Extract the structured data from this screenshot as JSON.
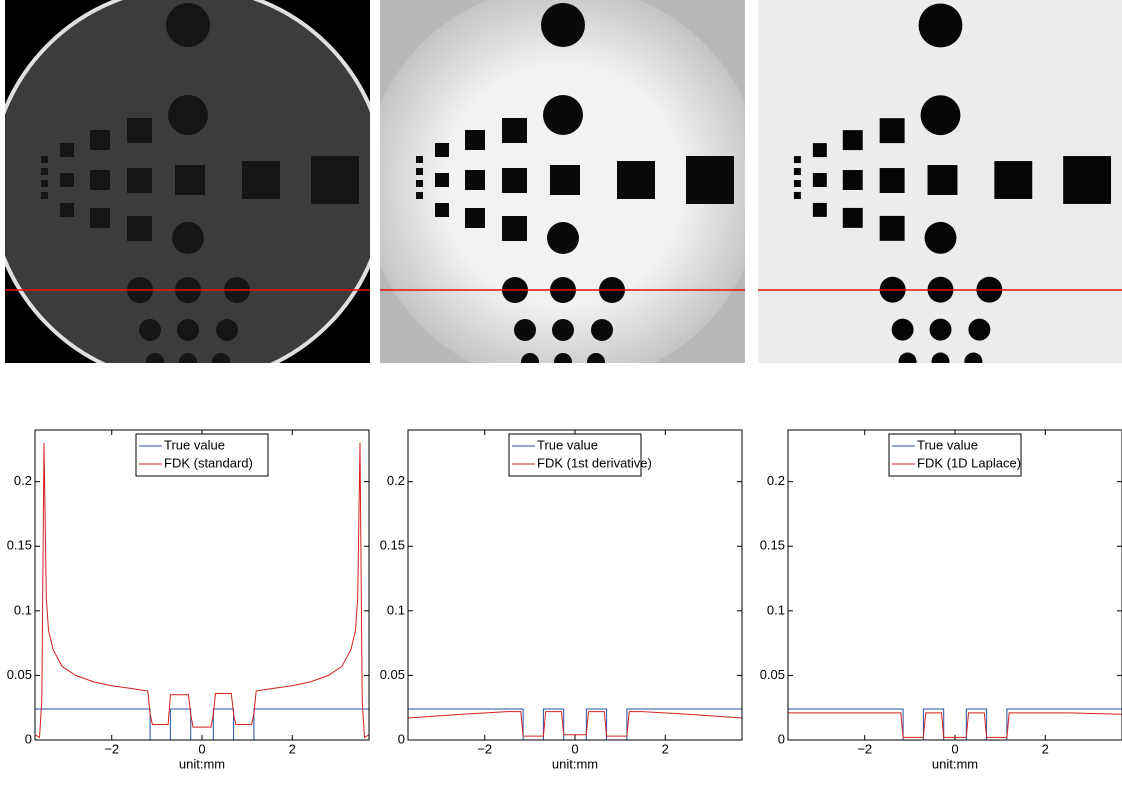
{
  "chart_data": [
    {
      "type": "line",
      "x_label": "unit:mm",
      "xlim": [
        -3.7,
        3.7
      ],
      "ylim": [
        0,
        0.24
      ],
      "xticks": [
        {
          "value": -2,
          "label": "−2"
        },
        0,
        2
      ],
      "yticks": [
        0,
        0.05,
        0.1,
        0.15,
        0.2
      ],
      "legend": "upper center",
      "series": [
        {
          "name": "True value",
          "color": "#2b4fa0",
          "x": [
            -3.7,
            -1.15,
            -1.15,
            -0.7,
            -0.7,
            -0.25,
            -0.25,
            0.25,
            0.25,
            0.7,
            0.7,
            1.15,
            1.15,
            3.7
          ],
          "values": [
            0.024,
            0.024,
            0,
            0,
            0.024,
            0.024,
            0,
            0,
            0.024,
            0.024,
            0,
            0,
            0.024,
            0.024
          ]
        },
        {
          "name": "FDK (standard)",
          "color": "#d42020",
          "x": [
            -3.7,
            -3.6,
            -3.55,
            -3.5,
            -3.45,
            -3.4,
            -3.3,
            -3.1,
            -2.8,
            -2.4,
            -2,
            -1.6,
            -1.2,
            -1.15,
            -1.1,
            -0.75,
            -0.7,
            -0.3,
            -0.25,
            -0.2,
            0.2,
            0.25,
            0.3,
            0.65,
            0.7,
            0.75,
            1.1,
            1.15,
            1.2,
            1.6,
            2,
            2.4,
            2.8,
            3.1,
            3.3,
            3.4,
            3.45,
            3.5,
            3.55,
            3.6,
            3.7
          ],
          "values": [
            0.004,
            0.002,
            0.03,
            0.23,
            0.11,
            0.085,
            0.07,
            0.057,
            0.05,
            0.045,
            0.042,
            0.04,
            0.038,
            0.02,
            0.012,
            0.012,
            0.035,
            0.035,
            0.02,
            0.01,
            0.01,
            0.02,
            0.036,
            0.036,
            0.02,
            0.012,
            0.012,
            0.02,
            0.038,
            0.04,
            0.042,
            0.045,
            0.05,
            0.057,
            0.07,
            0.085,
            0.11,
            0.23,
            0.03,
            0.002,
            0.004
          ]
        }
      ]
    },
    {
      "type": "line",
      "x_label": "unit:mm",
      "xlim": [
        -3.7,
        3.7
      ],
      "ylim": [
        0,
        0.24
      ],
      "xticks": [
        {
          "value": -2,
          "label": "−2"
        },
        0,
        2
      ],
      "yticks": [
        0,
        0.05,
        0.1,
        0.15,
        0.2
      ],
      "legend": "upper center",
      "series": [
        {
          "name": "True value",
          "color": "#2b4fa0",
          "x": [
            -3.7,
            -1.15,
            -1.15,
            -0.7,
            -0.7,
            -0.25,
            -0.25,
            0.25,
            0.25,
            0.7,
            0.7,
            1.15,
            1.15,
            3.7
          ],
          "values": [
            0.024,
            0.024,
            0,
            0,
            0.024,
            0.024,
            0,
            0,
            0.024,
            0.024,
            0,
            0,
            0.024,
            0.024
          ]
        },
        {
          "name": "FDK (1st derivative)",
          "color": "#d42020",
          "x": [
            -3.7,
            -2.5,
            -1.5,
            -1.2,
            -1.15,
            -0.7,
            -0.65,
            -0.3,
            -0.25,
            0.25,
            0.3,
            0.65,
            0.7,
            1.15,
            1.2,
            1.5,
            2.5,
            3.7
          ],
          "values": [
            0.017,
            0.02,
            0.022,
            0.022,
            0.003,
            0.003,
            0.022,
            0.022,
            0.004,
            0.004,
            0.022,
            0.022,
            0.003,
            0.003,
            0.022,
            0.022,
            0.02,
            0.017
          ]
        }
      ]
    },
    {
      "type": "line",
      "x_label": "unit:mm",
      "xlim": [
        -3.7,
        3.7
      ],
      "ylim": [
        0,
        0.24
      ],
      "xticks": [
        {
          "value": -2,
          "label": "−2"
        },
        0,
        2
      ],
      "yticks": [
        0,
        0.05,
        0.1,
        0.15,
        0.2
      ],
      "legend": "upper center",
      "series": [
        {
          "name": "True value",
          "color": "#2b4fa0",
          "x": [
            -3.7,
            -1.15,
            -1.15,
            -0.7,
            -0.7,
            -0.25,
            -0.25,
            0.25,
            0.25,
            0.7,
            0.7,
            1.15,
            1.15,
            3.7
          ],
          "values": [
            0.024,
            0.024,
            0,
            0,
            0.024,
            0.024,
            0,
            0,
            0.024,
            0.024,
            0,
            0,
            0.024,
            0.024
          ]
        },
        {
          "name": "FDK (1D Laplace)",
          "color": "#d42020",
          "x": [
            -3.7,
            -2.5,
            -1.5,
            -1.2,
            -1.15,
            -0.7,
            -0.65,
            -0.3,
            -0.25,
            0.25,
            0.3,
            0.65,
            0.7,
            1.15,
            1.2,
            1.5,
            2.5,
            3.7
          ],
          "values": [
            0.021,
            0.021,
            0.021,
            0.021,
            0.002,
            0.002,
            0.021,
            0.021,
            0.002,
            0.002,
            0.021,
            0.021,
            0.002,
            0.002,
            0.021,
            0.021,
            0.021,
            0.02
          ]
        }
      ]
    }
  ]
}
